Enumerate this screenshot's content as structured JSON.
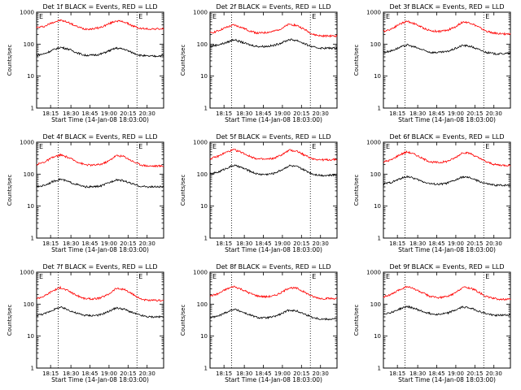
{
  "figure": {
    "xtick_labels": [
      "18:15",
      "18:30",
      "18:45",
      "19:00",
      "20:15",
      "20:30"
    ],
    "xlabel": "Start Time (14-Jan-08 18:03:00)",
    "ylabel": "Counts/sec",
    "ytick_labels": [
      "1",
      "10",
      "100",
      "1000"
    ]
  },
  "chart_data": [
    {
      "type": "line",
      "title": "Det 1f BLACK = Events, RED = LLD",
      "ylim": [
        1,
        1000
      ],
      "yscale": "log",
      "xlabel": "Start Time (14-Jan-08 18:03:00)",
      "ylabel": "Counts/sec",
      "x": [
        0,
        10,
        20,
        30,
        40,
        50,
        60,
        70,
        80,
        90,
        100,
        110,
        120,
        130,
        140,
        150,
        160
      ],
      "series": [
        {
          "color": "#ff0000",
          "values": [
            330,
            360,
            480,
            560,
            480,
            360,
            300,
            300,
            330,
            420,
            540,
            500,
            380,
            310,
            300,
            300,
            300
          ]
        },
        {
          "color": "#000000",
          "values": [
            45,
            50,
            65,
            80,
            70,
            55,
            45,
            45,
            48,
            60,
            75,
            70,
            55,
            45,
            42,
            42,
            44
          ]
        }
      ]
    },
    {
      "type": "line",
      "title": "Det 2f BLACK = Events, RED = LLD",
      "ylim": [
        1,
        1000
      ],
      "yscale": "log",
      "xlabel": "Start Time (14-Jan-08 18:03:00)",
      "ylabel": "Counts/sec",
      "x": [
        0,
        10,
        20,
        30,
        40,
        50,
        60,
        70,
        80,
        90,
        100,
        110,
        120,
        130,
        140,
        150,
        160
      ],
      "series": [
        {
          "color": "#ff0000",
          "values": [
            220,
            260,
            330,
            400,
            330,
            260,
            220,
            230,
            250,
            310,
            420,
            380,
            280,
            200,
            180,
            180,
            180
          ]
        },
        {
          "color": "#000000",
          "values": [
            85,
            95,
            110,
            140,
            115,
            95,
            85,
            85,
            90,
            110,
            140,
            130,
            100,
            80,
            75,
            75,
            75
          ]
        }
      ]
    },
    {
      "type": "line",
      "title": "Det 3f BLACK = Events, RED = LLD",
      "ylim": [
        1,
        1000
      ],
      "yscale": "log",
      "xlabel": "Start Time (14-Jan-08 18:03:00)",
      "ylabel": "Counts/sec",
      "x": [
        0,
        10,
        20,
        30,
        40,
        50,
        60,
        70,
        80,
        90,
        100,
        110,
        120,
        130,
        140,
        150,
        160
      ],
      "series": [
        {
          "color": "#ff0000",
          "values": [
            250,
            300,
            420,
            520,
            430,
            320,
            260,
            250,
            270,
            340,
            500,
            460,
            340,
            250,
            220,
            210,
            210
          ]
        },
        {
          "color": "#000000",
          "values": [
            55,
            62,
            78,
            95,
            80,
            65,
            55,
            55,
            58,
            72,
            92,
            85,
            68,
            55,
            50,
            50,
            52
          ]
        }
      ]
    },
    {
      "type": "line",
      "title": "Det 4f BLACK = Events, RED = LLD",
      "ylim": [
        1,
        1000
      ],
      "yscale": "log",
      "xlabel": "Start Time (14-Jan-08 18:03:00)",
      "ylabel": "Counts/sec",
      "x": [
        0,
        10,
        20,
        30,
        40,
        50,
        60,
        70,
        80,
        90,
        100,
        110,
        120,
        130,
        140,
        150,
        160
      ],
      "series": [
        {
          "color": "#ff0000",
          "values": [
            200,
            240,
            330,
            400,
            330,
            250,
            200,
            190,
            200,
            250,
            380,
            360,
            260,
            200,
            180,
            180,
            180
          ]
        },
        {
          "color": "#000000",
          "values": [
            40,
            45,
            58,
            70,
            58,
            48,
            40,
            40,
            42,
            52,
            68,
            62,
            50,
            42,
            40,
            40,
            40
          ]
        }
      ]
    },
    {
      "type": "line",
      "title": "Det 5f BLACK = Events, RED = LLD",
      "ylim": [
        1,
        1000
      ],
      "yscale": "log",
      "xlabel": "Start Time (14-Jan-08 18:03:00)",
      "ylabel": "Counts/sec",
      "x": [
        0,
        10,
        20,
        30,
        40,
        50,
        60,
        70,
        80,
        90,
        100,
        110,
        120,
        130,
        140,
        150,
        160
      ],
      "series": [
        {
          "color": "#ff0000",
          "values": [
            300,
            360,
            480,
            580,
            480,
            360,
            300,
            290,
            310,
            400,
            560,
            520,
            380,
            300,
            280,
            280,
            290
          ]
        },
        {
          "color": "#000000",
          "values": [
            100,
            115,
            150,
            190,
            160,
            125,
            100,
            98,
            105,
            135,
            185,
            170,
            130,
            100,
            92,
            92,
            95
          ]
        }
      ]
    },
    {
      "type": "line",
      "title": "Det 6f BLACK = Events, RED = LLD",
      "ylim": [
        1,
        1000
      ],
      "yscale": "log",
      "xlabel": "Start Time (14-Jan-08 18:03:00)",
      "ylabel": "Counts/sec",
      "x": [
        0,
        10,
        20,
        30,
        40,
        50,
        60,
        70,
        80,
        90,
        100,
        110,
        120,
        130,
        140,
        150,
        160
      ],
      "series": [
        {
          "color": "#ff0000",
          "values": [
            240,
            280,
            400,
            500,
            410,
            300,
            240,
            230,
            250,
            320,
            480,
            440,
            320,
            240,
            200,
            190,
            190
          ]
        },
        {
          "color": "#000000",
          "values": [
            50,
            55,
            70,
            85,
            72,
            58,
            50,
            48,
            52,
            64,
            82,
            76,
            60,
            50,
            45,
            45,
            46
          ]
        }
      ]
    },
    {
      "type": "line",
      "title": "Det 7f BLACK = Events, RED = LLD",
      "ylim": [
        1,
        1000
      ],
      "yscale": "log",
      "xlabel": "Start Time (14-Jan-08 18:03:00)",
      "ylabel": "Counts/sec",
      "x": [
        0,
        10,
        20,
        30,
        40,
        50,
        60,
        70,
        80,
        90,
        100,
        110,
        120,
        130,
        140,
        150,
        160
      ],
      "series": [
        {
          "color": "#ff0000",
          "values": [
            150,
            180,
            260,
            330,
            260,
            190,
            150,
            145,
            155,
            200,
            310,
            290,
            210,
            150,
            130,
            130,
            130
          ]
        },
        {
          "color": "#000000",
          "values": [
            45,
            50,
            65,
            80,
            66,
            52,
            45,
            44,
            46,
            58,
            76,
            70,
            55,
            45,
            40,
            40,
            40
          ]
        }
      ]
    },
    {
      "type": "line",
      "title": "Det 8f BLACK = Events, RED = LLD",
      "ylim": [
        1,
        1000
      ],
      "yscale": "log",
      "xlabel": "Start Time (14-Jan-08 18:03:00)",
      "ylabel": "Counts/sec",
      "x": [
        0,
        10,
        20,
        30,
        40,
        50,
        60,
        70,
        80,
        90,
        100,
        110,
        120,
        130,
        140,
        150,
        160
      ],
      "series": [
        {
          "color": "#ff0000",
          "values": [
            180,
            210,
            290,
            360,
            290,
            220,
            180,
            170,
            180,
            230,
            330,
            310,
            230,
            170,
            150,
            150,
            150
          ]
        },
        {
          "color": "#000000",
          "values": [
            38,
            42,
            55,
            70,
            58,
            46,
            38,
            37,
            40,
            50,
            66,
            60,
            48,
            38,
            34,
            34,
            35
          ]
        }
      ]
    },
    {
      "type": "line",
      "title": "Det 9f BLACK = Events, RED = LLD",
      "ylim": [
        1,
        1000
      ],
      "yscale": "log",
      "xlabel": "Start Time (14-Jan-08 18:03:00)",
      "ylabel": "Counts/sec",
      "x": [
        0,
        10,
        20,
        30,
        40,
        50,
        60,
        70,
        80,
        90,
        100,
        110,
        120,
        130,
        140,
        150,
        160
      ],
      "series": [
        {
          "color": "#ff0000",
          "values": [
            170,
            200,
            280,
            360,
            290,
            220,
            170,
            160,
            170,
            220,
            340,
            320,
            240,
            170,
            150,
            140,
            140
          ]
        },
        {
          "color": "#000000",
          "values": [
            50,
            55,
            70,
            85,
            72,
            58,
            50,
            48,
            52,
            64,
            82,
            76,
            60,
            50,
            45,
            45,
            46
          ]
        }
      ]
    }
  ]
}
